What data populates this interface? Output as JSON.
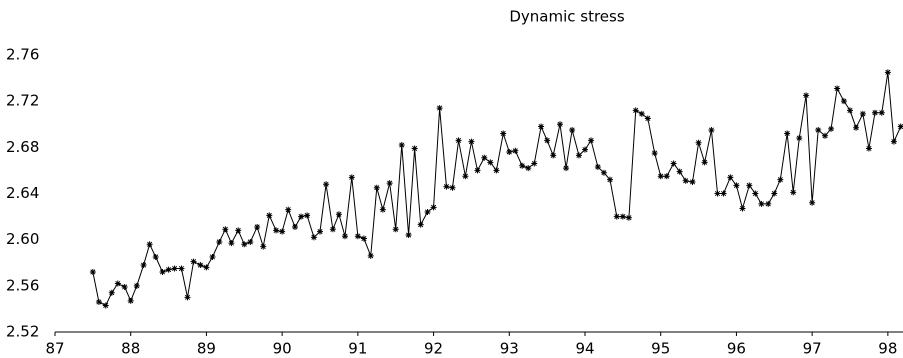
{
  "chart_data": {
    "type": "line",
    "title": "Dynamic stress",
    "x": [
      87.5,
      87.58,
      87.67,
      87.75,
      87.83,
      87.92,
      88,
      88.08,
      88.17,
      88.25,
      88.33,
      88.42,
      88.5,
      88.58,
      88.67,
      88.75,
      88.83,
      88.92,
      89,
      89.08,
      89.17,
      89.25,
      89.33,
      89.42,
      89.5,
      89.58,
      89.67,
      89.75,
      89.83,
      89.92,
      90,
      90.08,
      90.17,
      90.25,
      90.33,
      90.42,
      90.5,
      90.58,
      90.67,
      90.75,
      90.83,
      90.92,
      91,
      91.08,
      91.17,
      91.25,
      91.33,
      91.42,
      91.5,
      91.58,
      91.67,
      91.75,
      91.83,
      91.92,
      92,
      92.08,
      92.17,
      92.25,
      92.33,
      92.42,
      92.5,
      92.58,
      92.67,
      92.75,
      92.83,
      92.92,
      93,
      93.08,
      93.17,
      93.25,
      93.33,
      93.42,
      93.5,
      93.58,
      93.67,
      93.75,
      93.83,
      93.92,
      94,
      94.08,
      94.17,
      94.25,
      94.33,
      94.42,
      94.5,
      94.58,
      94.67,
      94.75,
      94.83,
      94.92,
      95,
      95.08,
      95.17,
      95.25,
      95.33,
      95.42,
      95.5,
      95.58,
      95.67,
      95.75,
      95.83,
      95.92,
      96,
      96.08,
      96.17,
      96.25,
      96.33,
      96.42,
      96.5,
      96.58,
      96.67,
      96.75,
      96.83,
      96.92,
      97,
      97.08,
      97.17,
      97.25,
      97.33,
      97.42,
      97.5,
      97.58,
      97.67,
      97.75,
      97.83,
      97.92,
      98,
      98.08,
      98.17
    ],
    "series": [
      {
        "color": "#000000",
        "values": [
          2.572,
          2.546,
          2.543,
          2.554,
          2.562,
          2.559,
          2.547,
          2.56,
          2.578,
          2.596,
          2.585,
          2.572,
          2.574,
          2.575,
          2.575,
          2.55,
          2.581,
          2.578,
          2.576,
          2.585,
          2.598,
          2.609,
          2.597,
          2.608,
          2.596,
          2.598,
          2.611,
          2.594,
          2.621,
          2.608,
          2.607,
          2.626,
          2.611,
          2.62,
          2.621,
          2.602,
          2.607,
          2.648,
          2.609,
          2.622,
          2.603,
          2.654,
          2.603,
          2.601,
          2.586,
          2.645,
          2.626,
          2.649,
          2.609,
          2.682,
          2.604,
          2.679,
          2.613,
          2.624,
          2.628,
          2.714,
          2.646,
          2.645,
          2.686,
          2.655,
          2.685,
          2.66,
          2.671,
          2.667,
          2.66,
          2.692,
          2.676,
          2.677,
          2.664,
          2.662,
          2.666,
          2.698,
          2.686,
          2.673,
          2.7,
          2.662,
          2.695,
          2.673,
          2.678,
          2.686,
          2.663,
          2.658,
          2.652,
          2.62,
          2.62,
          2.619,
          2.712,
          2.709,
          2.705,
          2.675,
          2.655,
          2.655,
          2.666,
          2.659,
          2.651,
          2.65,
          2.684,
          2.667,
          2.695,
          2.64,
          2.64,
          2.654,
          2.647,
          2.627,
          2.647,
          2.64,
          2.631,
          2.631,
          2.64,
          2.652,
          2.692,
          2.641,
          2.688,
          2.725,
          2.632,
          2.695,
          2.69,
          2.696,
          2.731,
          2.72,
          2.712,
          2.697,
          2.709,
          2.679,
          2.71,
          2.71,
          2.745,
          2.685,
          2.698
        ]
      }
    ],
    "xlim": [
      87,
      98.2
    ],
    "xticks": [
      87,
      88,
      89,
      90,
      91,
      92,
      93,
      94,
      95,
      96,
      97,
      98
    ],
    "ylim": [
      2.52,
      2.76
    ],
    "yticks": [
      2.52,
      2.56,
      {
        "value": 2.6,
        "label": "2.60"
      },
      2.64,
      2.68,
      2.72,
      2.76
    ]
  }
}
